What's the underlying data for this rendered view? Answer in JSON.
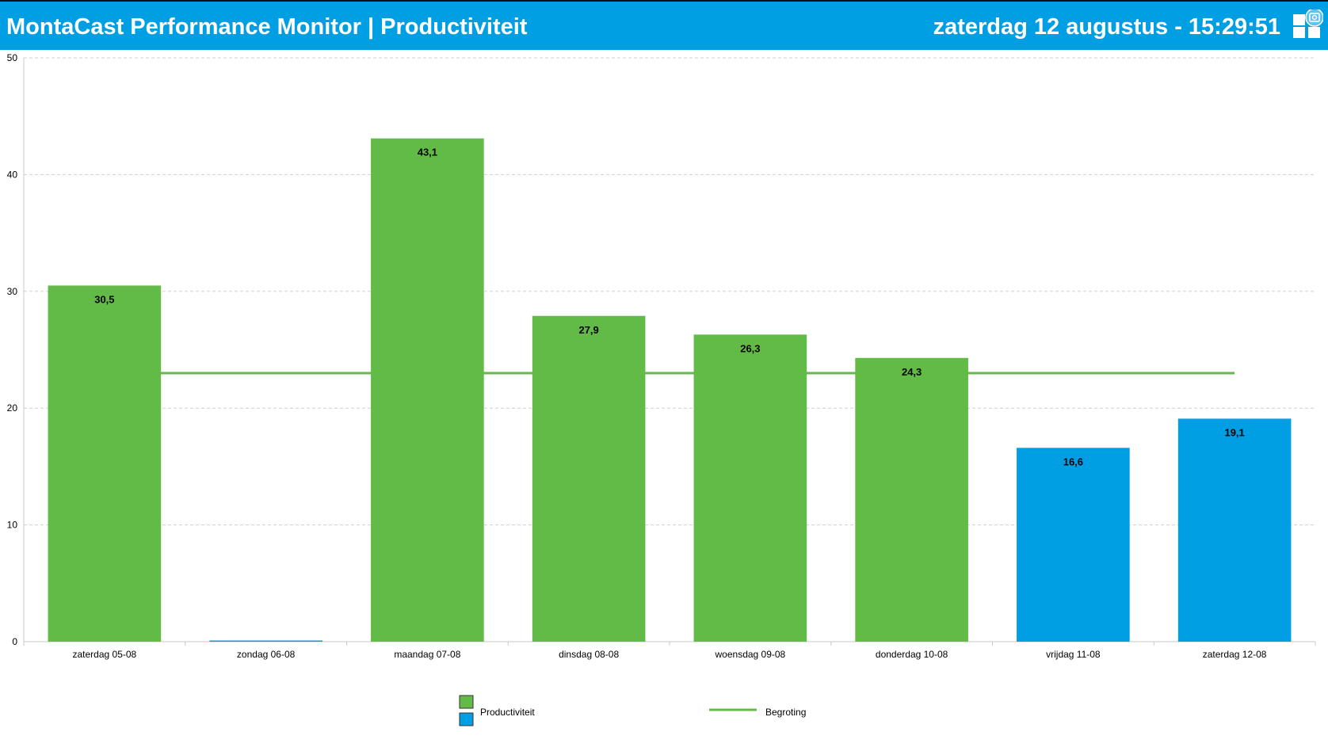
{
  "header": {
    "title": "MontaCast Performance Monitor | Productiviteit",
    "datetime": "zaterdag 12 augustus - 15:29:51",
    "background_color": "#009fe3",
    "menu_icon": "grid-menu-icon",
    "screenshot_icon": "camera-icon"
  },
  "colors": {
    "actual": "#62bb46",
    "forecast": "#009fe3",
    "budget_line": "#62bb46",
    "grid": "#d0d0d0"
  },
  "chart_data": {
    "type": "bar",
    "categories": [
      "zaterdag 05-08",
      "zondag 06-08",
      "maandag 07-08",
      "dinsdag 08-08",
      "woensdag 09-08",
      "donderdag 10-08",
      "vrijdag 11-08",
      "zaterdag 12-08"
    ],
    "series": [
      {
        "name": "Productiviteit",
        "values": [
          30.5,
          0,
          43.1,
          27.9,
          26.3,
          24.3,
          16.6,
          19.1
        ]
      }
    ],
    "value_labels": [
      "30,5",
      "",
      "43,1",
      "27,9",
      "26,3",
      "24,3",
      "16,6",
      "19,1"
    ],
    "bar_colors": [
      "actual",
      "forecast",
      "actual",
      "actual",
      "actual",
      "actual",
      "forecast",
      "forecast"
    ],
    "budget_line": {
      "name": "Begroting",
      "value": 23
    },
    "yticks": [
      "0",
      "10",
      "20",
      "30",
      "40",
      "50"
    ],
    "ylim": [
      0,
      50
    ],
    "grid": true,
    "legend": {
      "position": "bottom",
      "bars_label": "Productiviteit",
      "line_label": "Begroting"
    }
  }
}
